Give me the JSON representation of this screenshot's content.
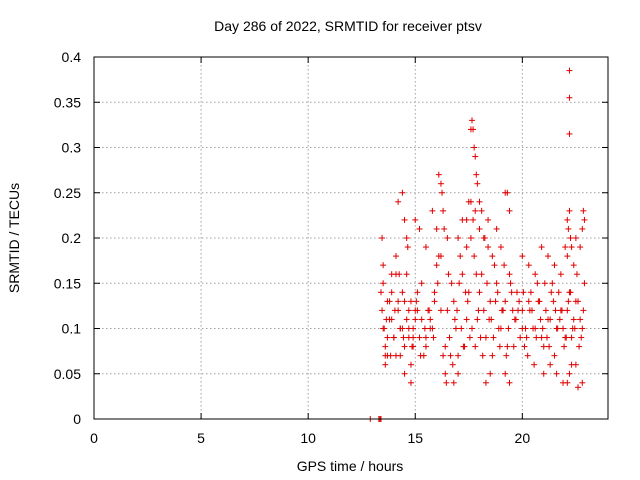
{
  "chart_data": {
    "type": "scatter",
    "title": "Day 286 of 2022, SRMTID for receiver ptsv",
    "xlabel": "GPS time / hours",
    "ylabel": "SRMTID / TECUs",
    "xlim": [
      0,
      24
    ],
    "ylim": [
      0,
      0.4
    ],
    "xticks": [
      0,
      5,
      10,
      15,
      20
    ],
    "xtick_labels": [
      "0",
      "5",
      "10",
      "15",
      "20"
    ],
    "yticks": [
      0,
      0.05,
      0.1,
      0.15,
      0.2,
      0.25,
      0.3,
      0.35,
      0.4
    ],
    "ytick_labels": [
      "0",
      "0.05",
      "0.1",
      "0.15",
      "0.2",
      "0.25",
      "0.3",
      "0.35",
      "0.4"
    ],
    "grid": true,
    "marker": "+",
    "color": "#e00000",
    "series": [
      {
        "x": [
          12.9,
          13.3,
          13.35,
          13.4,
          13.45,
          13.5,
          13.55,
          13.6,
          13.7,
          13.8,
          13.9,
          14.0,
          14.1,
          14.2,
          14.3,
          14.4,
          14.5,
          14.6,
          14.7,
          14.8,
          14.9,
          15.0,
          13.5,
          13.6,
          13.7,
          13.9,
          14.1,
          14.3,
          14.5,
          14.7,
          14.9,
          15.1,
          15.3,
          15.5,
          15.7,
          15.9,
          13.45,
          13.65,
          13.85,
          14.05,
          14.25,
          14.45,
          14.65,
          14.85,
          15.05,
          15.25,
          15.45,
          15.65,
          15.85,
          16.05,
          13.5,
          13.7,
          13.9,
          14.1,
          14.3,
          14.5,
          14.7,
          14.9,
          15.1,
          15.3,
          15.5,
          15.7,
          15.9,
          16.1,
          16.3,
          13.4,
          13.6,
          13.8,
          14.0,
          14.2,
          14.4,
          14.6,
          14.8,
          15.0,
          15.2,
          15.4,
          15.6,
          15.8,
          16.0,
          16.2,
          16.4,
          14.2,
          14.4,
          14.5,
          14.6,
          14.8,
          15.0,
          15.2,
          15.5,
          15.8,
          16.0,
          16.2,
          16.5,
          16.8,
          17.0,
          16.1,
          16.2,
          16.25,
          16.3,
          16.35,
          16.4,
          16.45,
          16.5,
          16.7,
          16.9,
          17.1,
          17.3,
          17.5,
          17.7,
          17.9,
          18.1,
          18.3,
          18.5,
          18.7,
          18.9,
          19.1,
          19.3,
          19.5,
          19.7,
          19.9,
          16.6,
          16.8,
          17.0,
          17.2,
          17.4,
          17.6,
          17.8,
          18.0,
          18.2,
          18.4,
          18.6,
          18.8,
          19.0,
          19.2,
          19.4,
          19.6,
          19.8,
          20.0,
          16.55,
          16.75,
          16.95,
          17.15,
          17.35,
          17.55,
          17.75,
          17.95,
          18.15,
          18.35,
          18.55,
          18.75,
          18.95,
          19.15,
          19.35,
          19.55,
          19.75,
          16.65,
          16.85,
          17.05,
          17.25,
          17.45,
          17.65,
          17.85,
          18.05,
          18.25,
          18.45,
          18.65,
          18.85,
          19.05,
          19.25,
          19.45,
          19.65,
          19.85,
          17.0,
          17.2,
          17.4,
          17.6,
          17.8,
          18.0,
          18.2,
          18.4,
          18.6,
          18.8,
          19.0,
          19.2,
          19.4,
          17.6,
          17.65,
          17.7,
          17.75,
          17.8,
          17.85,
          17.9,
          17.4,
          17.5,
          18.0,
          18.1,
          18.3,
          18.5,
          19.2,
          19.3,
          19.4,
          20.0,
          20.2,
          20.4,
          20.6,
          20.8,
          21.0,
          21.2,
          21.4,
          21.6,
          21.8,
          22.0,
          22.2,
          22.4,
          22.6,
          22.8,
          20.1,
          20.3,
          20.5,
          20.7,
          20.9,
          21.1,
          21.3,
          21.5,
          21.7,
          21.9,
          22.1,
          22.3,
          22.5,
          22.7,
          22.9,
          20.05,
          20.25,
          20.45,
          20.65,
          20.85,
          21.05,
          21.25,
          21.45,
          21.65,
          21.85,
          22.05,
          22.25,
          22.45,
          22.65,
          22.85,
          20.15,
          20.35,
          20.55,
          20.75,
          20.95,
          21.15,
          21.35,
          21.55,
          21.75,
          21.95,
          22.15,
          22.35,
          22.55,
          22.75,
          20.0,
          20.3,
          20.6,
          20.9,
          21.2,
          21.5,
          21.8,
          22.1,
          22.4,
          22.7,
          21.0,
          21.3,
          21.6,
          21.9,
          22.2,
          22.5,
          22.8,
          22.1,
          22.15,
          22.2,
          22.25,
          22.3,
          22.8,
          22.85,
          22.9,
          22.2,
          22.2,
          22.2,
          22.0,
          22.1,
          22.3,
          22.6,
          22.5
        ],
        "y": [
          0.0,
          0.0,
          0.0,
          0.0,
          0.12,
          0.15,
          0.1,
          0.08,
          0.07,
          0.13,
          0.11,
          0.09,
          0.16,
          0.12,
          0.1,
          0.14,
          0.08,
          0.11,
          0.09,
          0.13,
          0.1,
          0.12,
          0.17,
          0.06,
          0.09,
          0.14,
          0.18,
          0.07,
          0.13,
          0.1,
          0.08,
          0.12,
          0.15,
          0.09,
          0.11,
          0.14,
          0.2,
          0.11,
          0.07,
          0.12,
          0.16,
          0.09,
          0.19,
          0.08,
          0.13,
          0.07,
          0.1,
          0.12,
          0.09,
          0.15,
          0.1,
          0.13,
          0.16,
          0.07,
          0.1,
          0.22,
          0.12,
          0.09,
          0.14,
          0.11,
          0.08,
          0.1,
          0.13,
          0.18,
          0.07,
          0.14,
          0.07,
          0.11,
          0.09,
          0.13,
          0.1,
          0.16,
          0.06,
          0.11,
          0.09,
          0.07,
          0.12,
          0.1,
          0.17,
          0.12,
          0.08,
          0.24,
          0.25,
          0.05,
          0.2,
          0.04,
          0.22,
          0.21,
          0.19,
          0.23,
          0.21,
          0.18,
          0.2,
          0.04,
          0.05,
          0.27,
          0.26,
          0.25,
          0.23,
          0.21,
          0.05,
          0.04,
          0.12,
          0.15,
          0.1,
          0.18,
          0.08,
          0.14,
          0.22,
          0.11,
          0.16,
          0.09,
          0.13,
          0.17,
          0.1,
          0.12,
          0.08,
          0.14,
          0.11,
          0.09,
          0.09,
          0.13,
          0.07,
          0.16,
          0.11,
          0.2,
          0.08,
          0.14,
          0.12,
          0.19,
          0.07,
          0.15,
          0.1,
          0.13,
          0.16,
          0.08,
          0.12,
          0.1,
          0.16,
          0.06,
          0.12,
          0.1,
          0.14,
          0.09,
          0.18,
          0.12,
          0.07,
          0.15,
          0.11,
          0.13,
          0.08,
          0.17,
          0.1,
          0.12,
          0.14,
          0.07,
          0.11,
          0.15,
          0.08,
          0.13,
          0.1,
          0.16,
          0.09,
          0.2,
          0.11,
          0.09,
          0.14,
          0.12,
          0.07,
          0.15,
          0.11,
          0.13,
          0.2,
          0.22,
          0.19,
          0.24,
          0.23,
          0.21,
          0.2,
          0.22,
          0.18,
          0.21,
          0.19,
          0.25,
          0.23,
          0.32,
          0.33,
          0.32,
          0.3,
          0.29,
          0.27,
          0.26,
          0.22,
          0.24,
          0.24,
          0.23,
          0.04,
          0.05,
          0.05,
          0.25,
          0.04,
          0.12,
          0.09,
          0.14,
          0.1,
          0.13,
          0.08,
          0.11,
          0.15,
          0.1,
          0.12,
          0.09,
          0.14,
          0.11,
          0.13,
          0.1,
          0.08,
          0.13,
          0.1,
          0.15,
          0.09,
          0.12,
          0.11,
          0.07,
          0.14,
          0.1,
          0.12,
          0.09,
          0.13,
          0.11,
          0.15,
          0.14,
          0.07,
          0.12,
          0.09,
          0.11,
          0.15,
          0.08,
          0.13,
          0.1,
          0.12,
          0.09,
          0.14,
          0.1,
          0.08,
          0.12,
          0.1,
          0.12,
          0.06,
          0.13,
          0.1,
          0.09,
          0.14,
          0.12,
          0.11,
          0.08,
          0.13,
          0.1,
          0.16,
          0.09,
          0.18,
          0.17,
          0.16,
          0.19,
          0.18,
          0.17,
          0.16,
          0.18,
          0.17,
          0.19,
          0.05,
          0.06,
          0.05,
          0.04,
          0.05,
          0.06,
          0.04,
          0.22,
          0.21,
          0.23,
          0.2,
          0.19,
          0.21,
          0.23,
          0.22,
          0.385,
          0.355,
          0.315,
          0.19,
          0.04,
          0.06,
          0.035,
          0.2
        ]
      }
    ]
  }
}
